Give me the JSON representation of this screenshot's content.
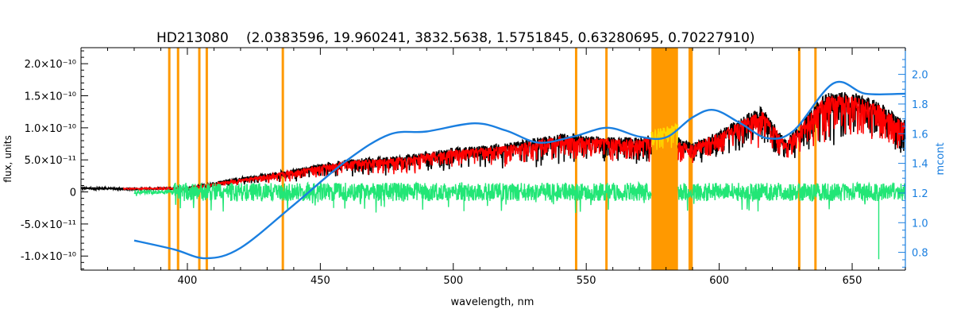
{
  "chart_data": {
    "type": "line",
    "title": "HD213080",
    "subtitle": "(2.0383596, 19.960241, 3832.5638, 1.5751845, 0.63280695, 0.70227910)",
    "xlabel": "wavelength, nm",
    "ylabel": "flux, units",
    "ylabel_right": "mcont",
    "xlim": [
      360,
      670
    ],
    "ylim": [
      -1.22e-10,
      2.25e-10
    ],
    "ylim_right": [
      0.68,
      2.18
    ],
    "x_ticks": [
      400,
      450,
      500,
      550,
      600,
      650
    ],
    "y_ticks": [
      {
        "value": 2e-10,
        "label": "2.0×10⁻¹⁰"
      },
      {
        "value": 1.5e-10,
        "label": "1.5×10⁻¹⁰"
      },
      {
        "value": 1e-10,
        "label": "1.0×10⁻¹⁰"
      },
      {
        "value": 5e-11,
        "label": "5.0×10⁻¹¹"
      },
      {
        "value": 0,
        "label": "0"
      },
      {
        "value": -5e-11,
        "label": "-5.0×10⁻¹¹"
      },
      {
        "value": -1e-10,
        "label": "-1.0×10⁻¹⁰"
      }
    ],
    "y_right_ticks": [
      2.0,
      1.8,
      1.6,
      1.4,
      1.2,
      1.0,
      0.8
    ],
    "grid": false,
    "masked_lines_nm": [
      393.2,
      396.5,
      404.5,
      407.3,
      435.9,
      546.2,
      557.6,
      588.9,
      589.6,
      630.1,
      636.2
    ],
    "masked_band_nm": [
      574.5,
      584.5
    ],
    "series": [
      {
        "role": "observed",
        "color": "#000000",
        "envelope_x": [
          360,
          380,
          400,
          420,
          440,
          460,
          480,
          500,
          520,
          540,
          560,
          570,
          580,
          590,
          600,
          610,
          616,
          625,
          640,
          650,
          660,
          670
        ],
        "envelope_y": [
          6e-12,
          5e-12,
          6e-12,
          2.2e-11,
          3.5e-11,
          5e-11,
          5.5e-11,
          6.8e-11,
          7.5e-11,
          9e-11,
          8.5e-11,
          8.5e-11,
          9.5e-11,
          7.5e-11,
          9.5e-11,
          1.2e-10,
          1.32e-10,
          8e-11,
          1.55e-10,
          1.55e-10,
          1.4e-10,
          1.1e-10
        ]
      },
      {
        "role": "model",
        "color": "#ff0000",
        "envelope_x": [
          376,
          400,
          420,
          440,
          460,
          480,
          500,
          520,
          540,
          560,
          570,
          575,
          590,
          600,
          610,
          616,
          625,
          640,
          650,
          660,
          670
        ],
        "envelope_y": [
          5e-12,
          6e-12,
          2e-11,
          3.3e-11,
          4.8e-11,
          5.3e-11,
          6.5e-11,
          7.2e-11,
          8.6e-11,
          8.2e-11,
          8.2e-11,
          8.5e-11,
          7.3e-11,
          9.2e-11,
          1.15e-10,
          1.28e-10,
          7.8e-11,
          1.5e-10,
          1.5e-10,
          1.36e-10,
          1.05e-10
        ]
      },
      {
        "role": "model-in-masked-band",
        "color": "#ffd700",
        "x_range": [
          574.5,
          584.5
        ],
        "y_level": 9.5e-11
      },
      {
        "role": "residual",
        "color": "#22e676",
        "x_range": [
          380,
          670
        ],
        "y_level": 0,
        "spikes": [
          {
            "x": 660,
            "y": -1.05e-10
          },
          {
            "x": 455,
            "y": -2.5e-11
          },
          {
            "x": 504,
            "y": -3e-11
          }
        ]
      },
      {
        "role": "continuum (mcont, right axis)",
        "color": "#1a7fe0",
        "axis": "right",
        "x": [
          380,
          395,
          407,
          420,
          440,
          460,
          476,
          490,
          508,
          520,
          532,
          545,
          558,
          570,
          580,
          590,
          598,
          608,
          618,
          628,
          643,
          655,
          670
        ],
        "y": [
          0.88,
          0.82,
          0.76,
          0.83,
          1.12,
          1.42,
          1.595,
          1.615,
          1.67,
          1.62,
          1.54,
          1.58,
          1.64,
          1.58,
          1.575,
          1.71,
          1.76,
          1.67,
          1.57,
          1.62,
          1.94,
          1.87,
          1.87
        ]
      }
    ]
  }
}
